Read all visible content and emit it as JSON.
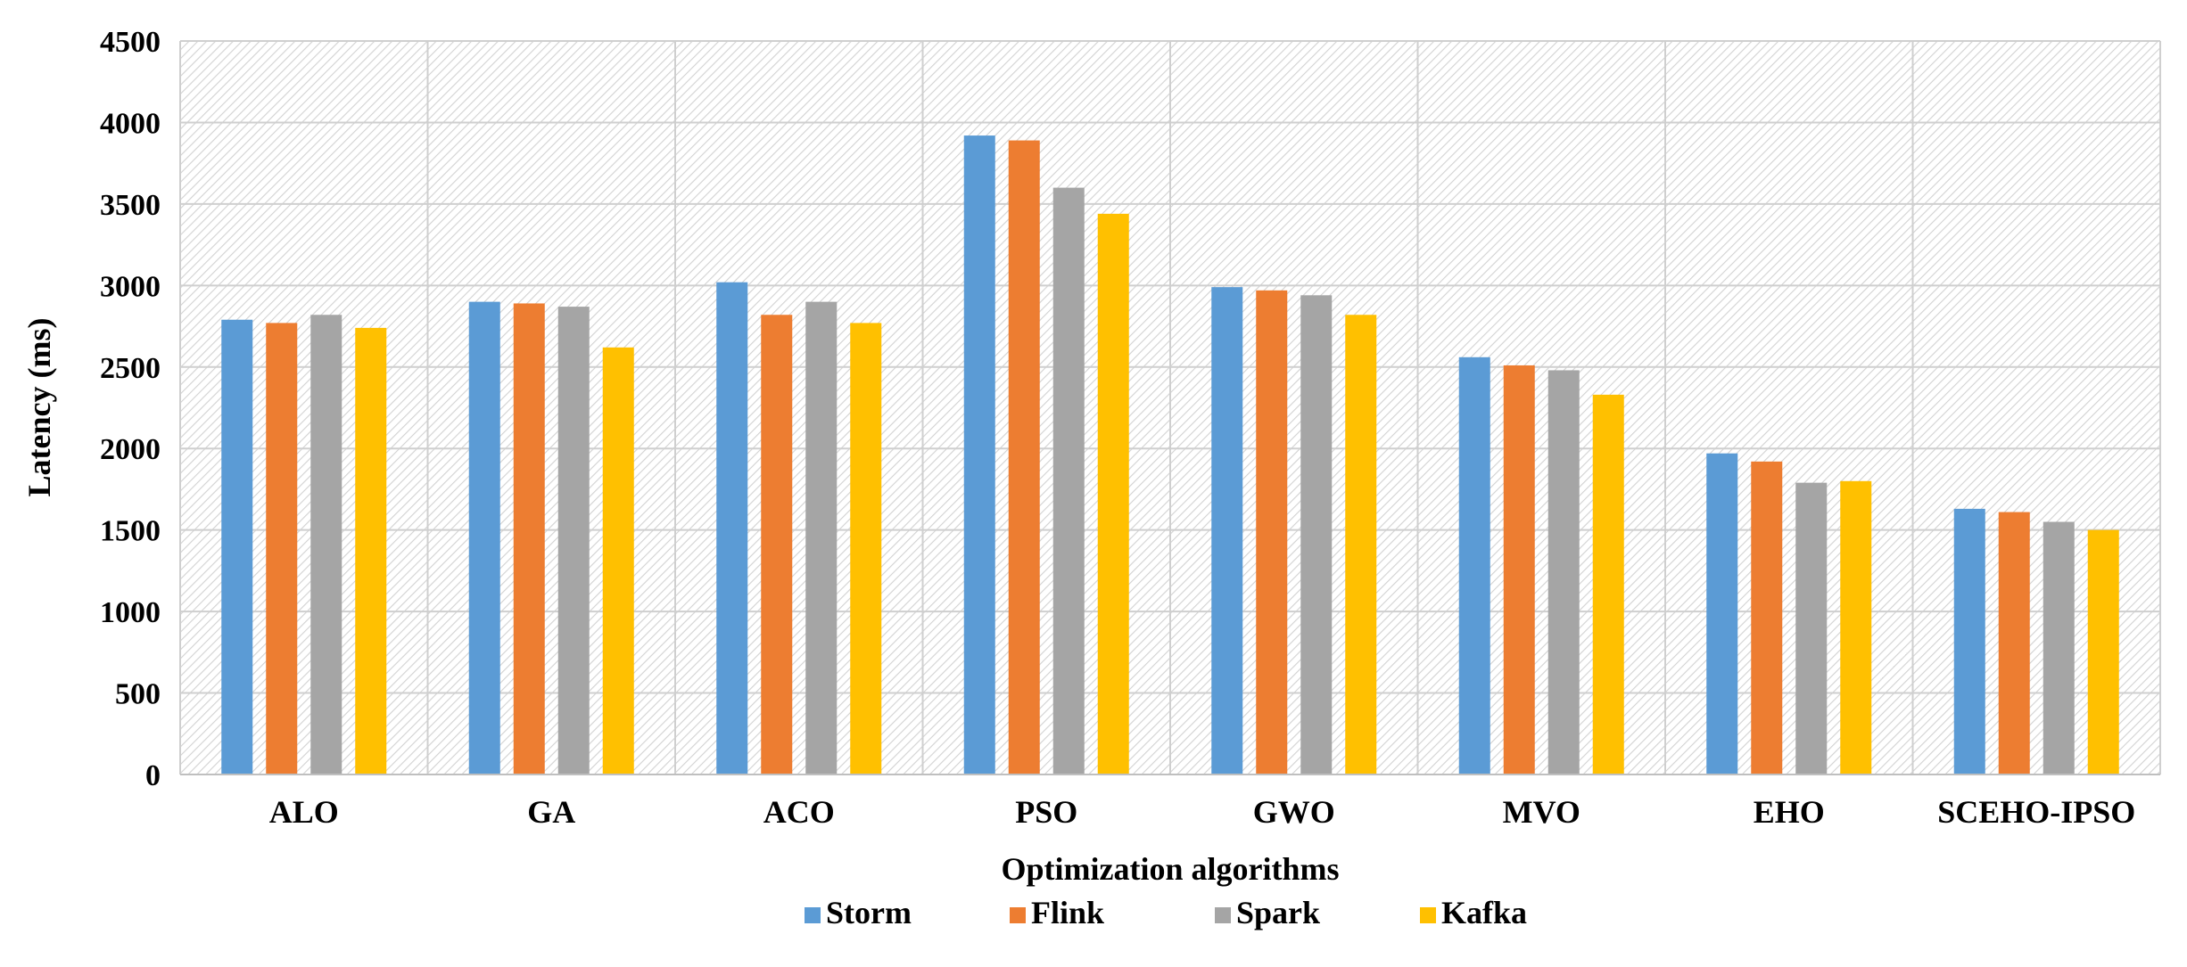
{
  "chart_data": {
    "type": "bar",
    "title": "",
    "xlabel": "Optimization algorithms",
    "ylabel": "Latency (ms)",
    "ylim": [
      0,
      4500
    ],
    "yticks": [
      0,
      500,
      1000,
      1500,
      2000,
      2500,
      3000,
      3500,
      4000,
      4500
    ],
    "grid": true,
    "legend_position": "bottom",
    "categories": [
      "ALO",
      "GA",
      "ACO",
      "PSO",
      "GWO",
      "MVO",
      "EHO",
      "SCEHO-IPSO"
    ],
    "series": [
      {
        "name": "Storm",
        "color": "#5b9bd5",
        "values": [
          2790,
          2900,
          3020,
          3920,
          2990,
          2560,
          1970,
          1630
        ]
      },
      {
        "name": "Flink",
        "color": "#ed7d31",
        "values": [
          2770,
          2890,
          2820,
          3890,
          2970,
          2510,
          1920,
          1610
        ]
      },
      {
        "name": "Spark",
        "color": "#a5a5a5",
        "values": [
          2820,
          2870,
          2900,
          3600,
          2940,
          2480,
          1790,
          1550
        ]
      },
      {
        "name": "Kafka",
        "color": "#ffc000",
        "values": [
          2740,
          2620,
          2770,
          3440,
          2820,
          2330,
          1800,
          1500
        ]
      }
    ]
  }
}
